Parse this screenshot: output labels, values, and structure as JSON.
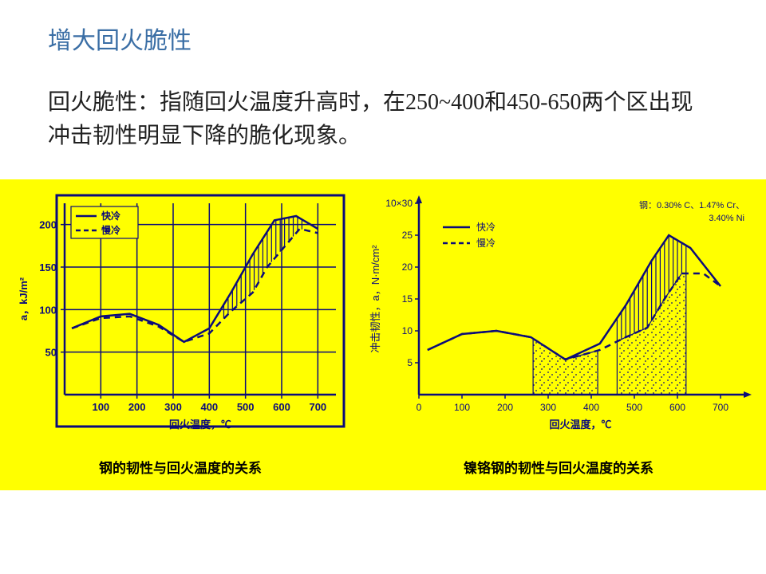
{
  "title_text": "增大回火脆性",
  "title_color": "#3a6ea5",
  "title_fontsize": 30,
  "description": "回火脆性：指随回火温度升高时，在250~400和450-650两个区出现冲击韧性明显下降的脆化现象。",
  "desc_color": "#202020",
  "desc_fontsize": 28,
  "figure_band_background": "#ffff00",
  "chart1": {
    "type": "line",
    "caption": "钢的韧性与回火温度的关系",
    "caption_fontsize": 17,
    "background_color": "#ffff00",
    "line_color": "#0b0b7a",
    "text_color": "#0b0b7a",
    "grid_color": "#0b0b7a",
    "line_width": 2.5,
    "xlabel": "回火温度，℃",
    "ylabel": "a，kJ/m²",
    "xlim": [
      0,
      750
    ],
    "ylim": [
      0,
      225
    ],
    "xticks": [
      100,
      200,
      300,
      400,
      500,
      600,
      700
    ],
    "yticks": [
      50,
      100,
      150,
      200
    ],
    "grid_vertical": [
      100,
      200,
      300,
      400,
      500,
      600,
      700
    ],
    "grid_horizontal": [
      50,
      100,
      150,
      200
    ],
    "legend": {
      "items": [
        {
          "label": "快冷",
          "dash": "solid"
        },
        {
          "label": "慢冷",
          "dash": "dashed"
        }
      ]
    },
    "series_fast": [
      {
        "x": 20,
        "y": 78
      },
      {
        "x": 100,
        "y": 92
      },
      {
        "x": 180,
        "y": 95
      },
      {
        "x": 260,
        "y": 82
      },
      {
        "x": 330,
        "y": 62
      },
      {
        "x": 400,
        "y": 78
      },
      {
        "x": 460,
        "y": 120
      },
      {
        "x": 520,
        "y": 165
      },
      {
        "x": 580,
        "y": 205
      },
      {
        "x": 640,
        "y": 210
      },
      {
        "x": 700,
        "y": 195
      }
    ],
    "series_slow": [
      {
        "x": 20,
        "y": 78
      },
      {
        "x": 100,
        "y": 90
      },
      {
        "x": 180,
        "y": 92
      },
      {
        "x": 260,
        "y": 80
      },
      {
        "x": 330,
        "y": 62
      },
      {
        "x": 400,
        "y": 72
      },
      {
        "x": 460,
        "y": 98
      },
      {
        "x": 520,
        "y": 120
      },
      {
        "x": 560,
        "y": 150
      },
      {
        "x": 610,
        "y": 175
      },
      {
        "x": 650,
        "y": 195
      },
      {
        "x": 700,
        "y": 190
      }
    ],
    "hatch_region": {
      "x_start": 440,
      "x_end": 660
    },
    "axis_label_fontsize": 13,
    "tick_fontsize": 13
  },
  "chart2": {
    "type": "line",
    "caption": "镍铬钢的韧性与回火温度的关系",
    "caption_fontsize": 17,
    "background_color": "#ffff00",
    "line_color": "#0b0b7a",
    "text_color": "#0b0b7a",
    "line_width": 2.5,
    "xlabel": "回火温度，℃",
    "ylabel": "冲击韧性，a，N·m/cm²",
    "steel_label": "钢：0.30% C、1.47% Cr、3.40% Ni",
    "xlim": [
      0,
      750
    ],
    "ylim": [
      0,
      30
    ],
    "xticks": [
      0,
      100,
      200,
      300,
      400,
      500,
      600,
      700
    ],
    "yticks": [
      5,
      10,
      15,
      20,
      25,
      30
    ],
    "ytick_top_label": "10×30",
    "legend": {
      "items": [
        {
          "label": "快冷",
          "dash": "solid"
        },
        {
          "label": "慢冷",
          "dash": "dashed"
        }
      ]
    },
    "series_fast": [
      {
        "x": 20,
        "y": 7
      },
      {
        "x": 100,
        "y": 9.5
      },
      {
        "x": 180,
        "y": 10
      },
      {
        "x": 260,
        "y": 9
      },
      {
        "x": 340,
        "y": 5.5
      },
      {
        "x": 420,
        "y": 8
      },
      {
        "x": 480,
        "y": 14
      },
      {
        "x": 540,
        "y": 21
      },
      {
        "x": 580,
        "y": 25
      },
      {
        "x": 630,
        "y": 23
      },
      {
        "x": 700,
        "y": 17
      }
    ],
    "series_slow": [
      {
        "x": 20,
        "y": 7
      },
      {
        "x": 100,
        "y": 9.5
      },
      {
        "x": 180,
        "y": 10
      },
      {
        "x": 260,
        "y": 9
      },
      {
        "x": 340,
        "y": 5.5
      },
      {
        "x": 420,
        "y": 7
      },
      {
        "x": 480,
        "y": 9
      },
      {
        "x": 530,
        "y": 10.5
      },
      {
        "x": 570,
        "y": 15
      },
      {
        "x": 610,
        "y": 19
      },
      {
        "x": 660,
        "y": 19
      },
      {
        "x": 700,
        "y": 17
      }
    ],
    "stipple_regions": [
      {
        "x_start": 265,
        "x_end": 415
      },
      {
        "x_start": 460,
        "x_end": 620
      }
    ],
    "hatch_region": {
      "x_start": 460,
      "x_end": 620
    },
    "axis_label_fontsize": 13,
    "tick_fontsize": 12
  }
}
